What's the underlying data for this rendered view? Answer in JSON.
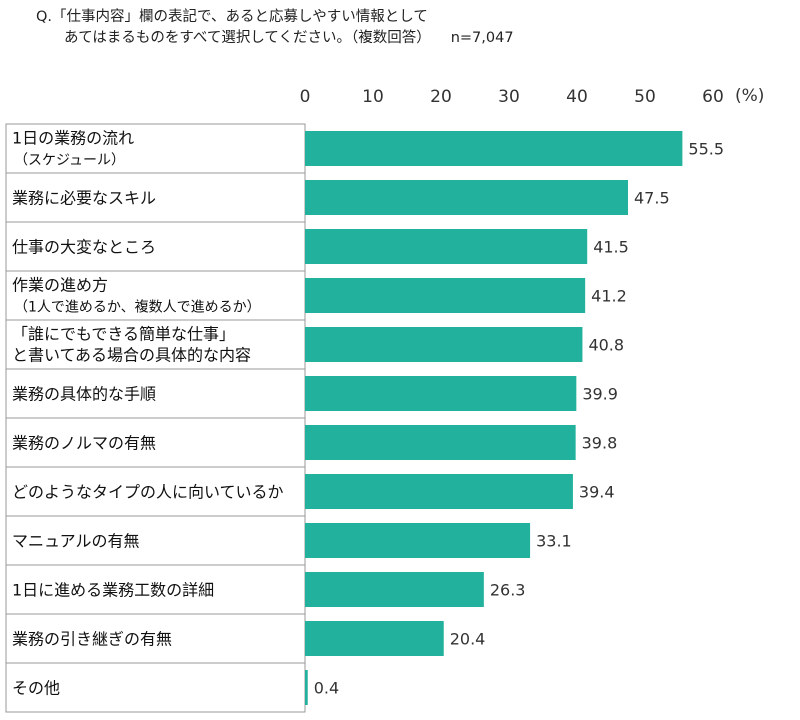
{
  "question": {
    "line1": "Q.「仕事内容」欄の表記で、あると応募しやすい情報として",
    "line2": "あてはまるものをすべて選択してください。（複数回答）",
    "n": "n=7,047"
  },
  "chart_data": {
    "type": "bar",
    "orientation": "horizontal",
    "unit": "(%)",
    "xlim": [
      0,
      60
    ],
    "ticks": [
      0,
      10,
      20,
      30,
      40,
      50,
      60
    ],
    "bar_color": "#21b19c",
    "categories": [
      [
        "1日の業務の流れ",
        "（スケジュール）"
      ],
      [
        "業務に必要なスキル"
      ],
      [
        "仕事の大変なところ"
      ],
      [
        "作業の進め方",
        "（1人で進めるか、複数人で進めるか）"
      ],
      [
        "「誰にでもできる簡単な仕事」",
        "と書いてある場合の具体的な内容"
      ],
      [
        "業務の具体的な手順"
      ],
      [
        "業務のノルマの有無"
      ],
      [
        "どのようなタイプの人に向いているか"
      ],
      [
        "マニュアルの有無"
      ],
      [
        "1日に進める業務工数の詳細"
      ],
      [
        "業務の引き継ぎの有無"
      ],
      [
        "その他"
      ]
    ],
    "values": [
      55.5,
      47.5,
      41.5,
      41.2,
      40.8,
      39.9,
      39.8,
      39.4,
      33.1,
      26.3,
      20.4,
      0.4
    ]
  }
}
